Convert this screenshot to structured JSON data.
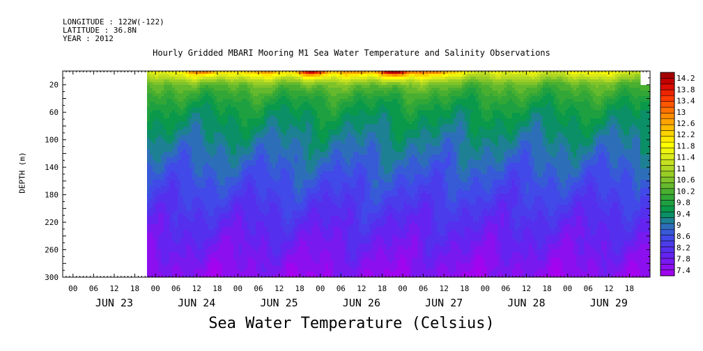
{
  "header": {
    "longitude": "LONGITUDE : 122W(-122)",
    "latitude": "LATITUDE : 36.8N",
    "year": "YEAR : 2012"
  },
  "chart_data": {
    "type": "heatmap",
    "title": "Hourly Gridded MBARI Mooring M1 Sea Water Temperature and Salinity Observations",
    "xlabel": "Sea Water Temperature (Celsius)",
    "ylabel": "DEPTH (m)",
    "y_ticks": [
      20,
      60,
      100,
      140,
      180,
      220,
      260,
      300
    ],
    "ylim": [
      300,
      0
    ],
    "x_hour_ticks": [
      "00",
      "06",
      "12",
      "18",
      "00",
      "06",
      "12",
      "18",
      "00",
      "06",
      "12",
      "18",
      "00",
      "06",
      "12",
      "18",
      "00",
      "06",
      "12",
      "18",
      "00",
      "06",
      "12",
      "18",
      "00",
      "06",
      "12",
      "18"
    ],
    "x_day_labels": [
      "JUN 23",
      "JUN 24",
      "JUN 25",
      "JUN 26",
      "JUN 27",
      "JUN 28",
      "JUN 29"
    ],
    "colorbar": {
      "labels": [
        "14.2",
        "13.8",
        "13.4",
        "13",
        "12.6",
        "12.2",
        "11.8",
        "11.4",
        "11",
        "10.6",
        "10.2",
        "9.8",
        "9.4",
        "9",
        "8.6",
        "8.2",
        "7.8",
        "7.4"
      ],
      "min": 7.4,
      "max": 14.4,
      "step": 0.2
    },
    "time_range_days": [
      -0.125,
      7.0
    ],
    "data_start_day": 0.9,
    "profile": [
      {
        "depth": 0,
        "temp": 11.6
      },
      {
        "depth": 10,
        "temp": 11.0
      },
      {
        "depth": 20,
        "temp": 10.4
      },
      {
        "depth": 40,
        "temp": 10.0
      },
      {
        "depth": 60,
        "temp": 9.7
      },
      {
        "depth": 80,
        "temp": 9.5
      },
      {
        "depth": 100,
        "temp": 9.3
      },
      {
        "depth": 140,
        "temp": 8.95
      },
      {
        "depth": 180,
        "temp": 8.6
      },
      {
        "depth": 220,
        "temp": 8.25
      },
      {
        "depth": 260,
        "temp": 7.95
      },
      {
        "depth": 300,
        "temp": 7.65
      }
    ],
    "surface_warm_events": [
      {
        "day": 1.6,
        "width": 0.25,
        "amp": 1.8
      },
      {
        "day": 2.3,
        "width": 0.35,
        "amp": 1.2
      },
      {
        "day": 2.9,
        "width": 0.2,
        "amp": 3.0
      },
      {
        "day": 3.45,
        "width": 0.3,
        "amp": 1.4
      },
      {
        "day": 3.9,
        "width": 0.18,
        "amp": 3.2
      },
      {
        "day": 4.35,
        "width": 0.35,
        "amp": 1.6
      },
      {
        "day": 6.2,
        "width": 0.3,
        "amp": 0.4
      }
    ]
  }
}
